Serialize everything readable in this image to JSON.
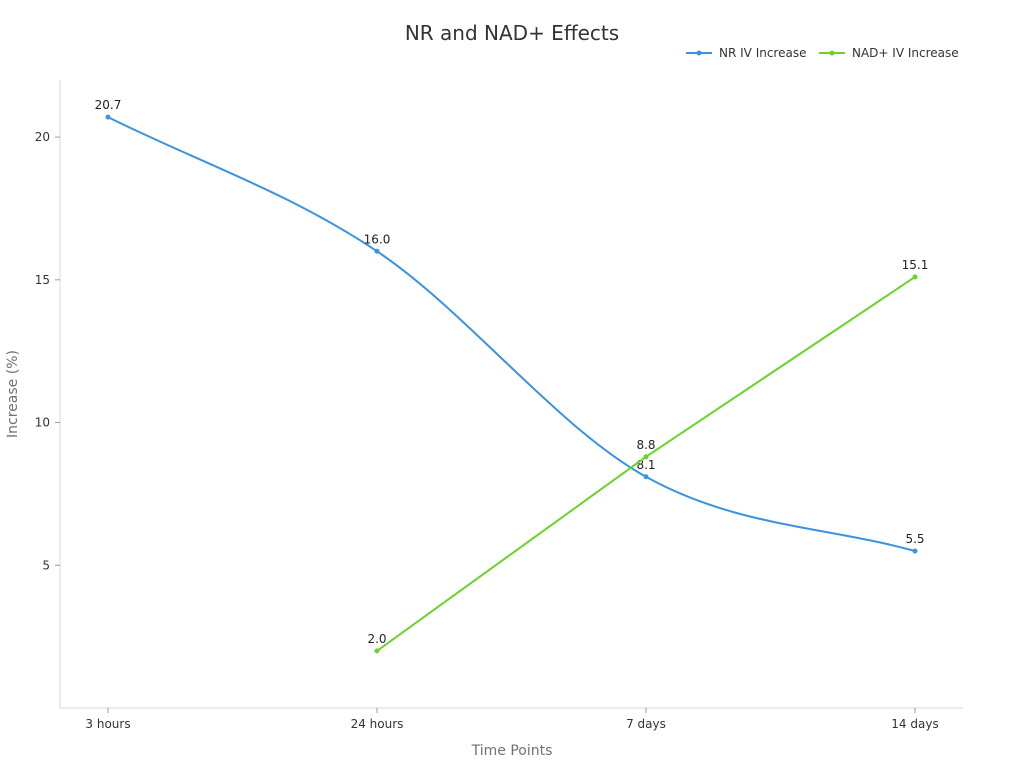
{
  "chart_data": {
    "type": "line",
    "title": "NR and NAD+ Effects",
    "xlabel": "Time Points",
    "ylabel": "Increase (%)",
    "categories": [
      "3 hours",
      "24 hours",
      "7 days",
      "14 days"
    ],
    "ylim": [
      0,
      22
    ],
    "yticks": [
      5,
      10,
      15,
      20
    ],
    "grid": false,
    "legend_position": "top-right",
    "series": [
      {
        "name": "NR IV Increase",
        "color": "#3a93e0",
        "smooth": true,
        "values": [
          20.7,
          16.0,
          8.1,
          5.5
        ]
      },
      {
        "name": "NAD+ IV Increase",
        "color": "#6bd12c",
        "smooth": false,
        "values": [
          null,
          2.0,
          8.8,
          15.1
        ]
      }
    ]
  }
}
